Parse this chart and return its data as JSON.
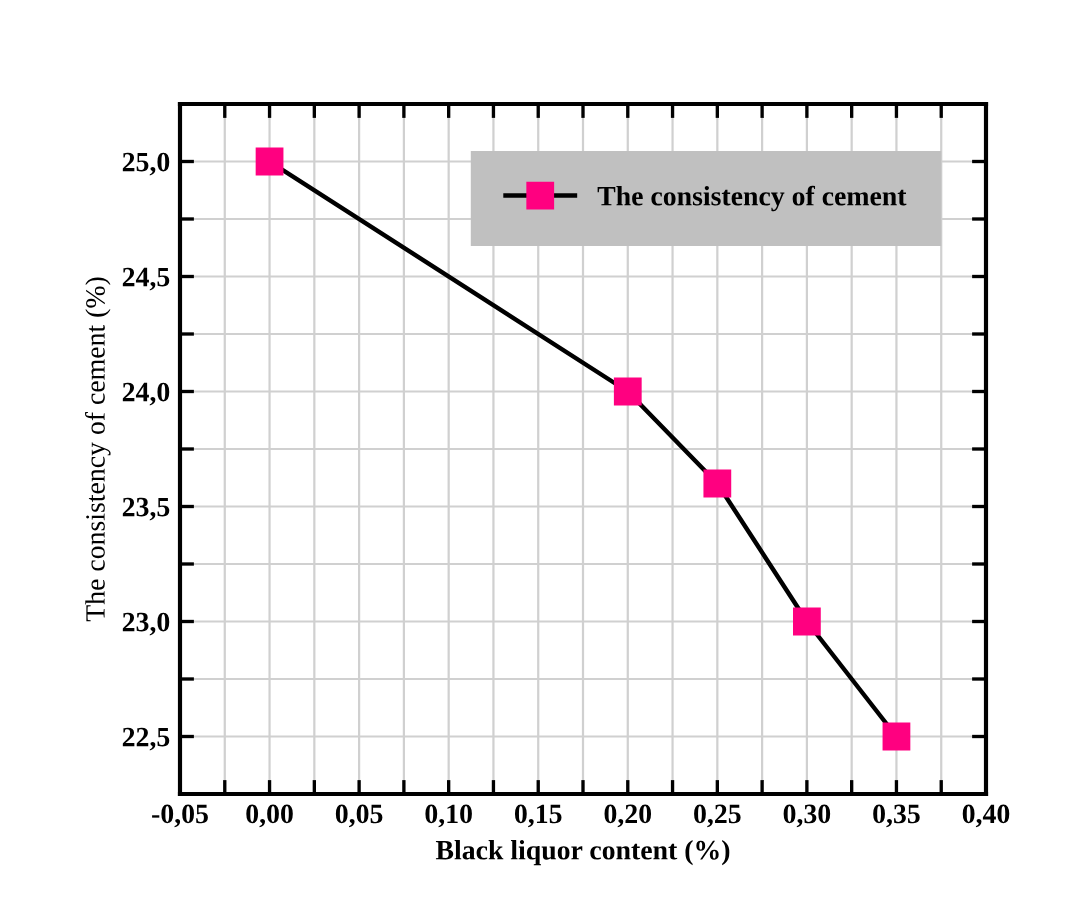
{
  "chart_data": {
    "type": "line",
    "xlabel": "Black liquor content (%)",
    "ylabel": "The consistency of cement (%)",
    "x": [
      0.0,
      0.2,
      0.25,
      0.3,
      0.35
    ],
    "series": [
      {
        "name": "The consistency of cement",
        "color": "#ff0080",
        "values": [
          25.0,
          24.0,
          23.6,
          23.0,
          22.5
        ]
      }
    ],
    "xlim": [
      -0.05,
      0.4
    ],
    "xticks": [
      {
        "value": -0.05,
        "label": "-0,05"
      },
      {
        "value": -0.025,
        "label": null
      },
      {
        "value": 0.0,
        "label": "0,00"
      },
      {
        "value": 0.025,
        "label": null
      },
      {
        "value": 0.05,
        "label": "0,05"
      },
      {
        "value": 0.075,
        "label": null
      },
      {
        "value": 0.1,
        "label": "0,10"
      },
      {
        "value": 0.125,
        "label": null
      },
      {
        "value": 0.15,
        "label": "0,15"
      },
      {
        "value": 0.175,
        "label": null
      },
      {
        "value": 0.2,
        "label": "0,20"
      },
      {
        "value": 0.225,
        "label": null
      },
      {
        "value": 0.25,
        "label": "0,25"
      },
      {
        "value": 0.275,
        "label": null
      },
      {
        "value": 0.3,
        "label": "0,30"
      },
      {
        "value": 0.325,
        "label": null
      },
      {
        "value": 0.35,
        "label": "0,35"
      },
      {
        "value": 0.375,
        "label": null
      },
      {
        "value": 0.4,
        "label": "0,40"
      }
    ],
    "ylim": [
      22.25,
      25.25
    ],
    "yticks": [
      {
        "value": 22.25,
        "label": null
      },
      {
        "value": 22.5,
        "label": "22,5"
      },
      {
        "value": 22.75,
        "label": null
      },
      {
        "value": 23.0,
        "label": "23,0"
      },
      {
        "value": 23.25,
        "label": null
      },
      {
        "value": 23.5,
        "label": "23,5"
      },
      {
        "value": 23.75,
        "label": null
      },
      {
        "value": 24.0,
        "label": "24,0"
      },
      {
        "value": 24.25,
        "label": null
      },
      {
        "value": 24.5,
        "label": "24,5"
      },
      {
        "value": 24.75,
        "label": null
      },
      {
        "value": 25.0,
        "label": "25,0"
      },
      {
        "value": 25.25,
        "label": null
      }
    ],
    "grid": true,
    "legend": "top right",
    "marker": "square",
    "line_style": "solid"
  }
}
